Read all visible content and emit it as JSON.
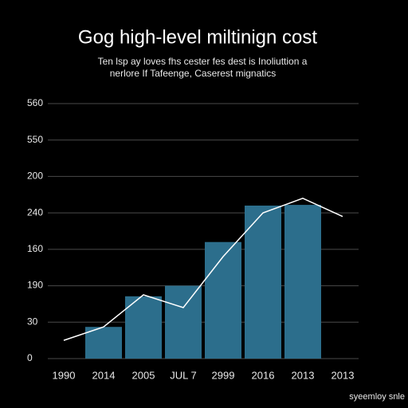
{
  "chart_data": {
    "type": "bar",
    "title": "Gog high-level miltinign cost",
    "subtitle": [
      "Ten lsp ay loves fhs cester fes dest is Inoliuttion a",
      "nerlore If Tafeenge, Caserest mignatics"
    ],
    "footer": "syeemloy snle",
    "categories": [
      "1990",
      "2014",
      "2005",
      "JUL 7",
      "2999",
      "2016",
      "2013",
      "2013"
    ],
    "series": [
      {
        "type": "bar",
        "color": "#2c6e8c",
        "values": [
          null,
          0.87,
          1.71,
          2.0,
          3.2,
          4.2,
          4.22,
          null
        ]
      },
      {
        "type": "line",
        "color": "#ffffff",
        "values": [
          0.5,
          0.87,
          1.75,
          1.4,
          2.8,
          4.0,
          4.4,
          3.9
        ]
      }
    ],
    "ylim": [
      0,
      7
    ],
    "yticks": [
      {
        "value": 0,
        "label": "0"
      },
      {
        "value": 1,
        "label": "30"
      },
      {
        "value": 2,
        "label": "190"
      },
      {
        "value": 3,
        "label": "160"
      },
      {
        "value": 4,
        "label": "240"
      },
      {
        "value": 5,
        "label": "200"
      },
      {
        "value": 6,
        "label": "550"
      },
      {
        "value": 7,
        "label": "560"
      }
    ],
    "grid": true
  }
}
